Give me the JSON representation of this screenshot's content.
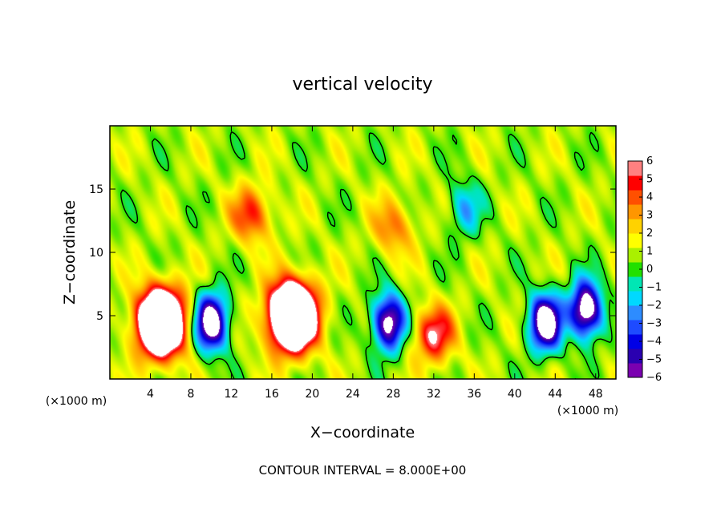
{
  "chart_data": {
    "type": "heatmap",
    "title": "vertical velocity",
    "xlabel": "X−coordinate",
    "ylabel": "Z−coordinate",
    "x_unit": "(×1000 m)",
    "y_unit": "(×1000 m)",
    "footer": "CONTOUR INTERVAL = 8.000E+00",
    "xlim": [
      0,
      50
    ],
    "ylim": [
      0,
      20
    ],
    "x_ticks": [
      4,
      8,
      12,
      16,
      20,
      24,
      28,
      32,
      36,
      40,
      44,
      48
    ],
    "y_ticks": [
      5,
      10,
      15
    ],
    "x_tick_labels": [
      "4",
      "8",
      "12",
      "16",
      "20",
      "24",
      "28",
      "32",
      "36",
      "40",
      "44",
      "48"
    ],
    "y_tick_labels": [
      "5",
      "10",
      "15"
    ],
    "colorbar": {
      "range": [
        -6,
        6
      ],
      "ticks": [
        6,
        5,
        4,
        3,
        2,
        1,
        0,
        -1,
        -2,
        -3,
        -4,
        -5,
        -6
      ],
      "tick_labels": [
        "6",
        "5",
        "4",
        "3",
        "2",
        "1",
        "0",
        "−1",
        "−2",
        "−3",
        "−4",
        "−5",
        "−6"
      ],
      "colors": [
        "#7a00b0",
        "#2a00b0",
        "#0000e6",
        "#1e4bff",
        "#2d8cff",
        "#00d9ff",
        "#00e6b4",
        "#22e000",
        "#aaf000",
        "#ffff00",
        "#ffd200",
        "#ff9600",
        "#ff5000",
        "#ff0000",
        "#ff8080"
      ]
    },
    "features": [
      {
        "kind": "updraft",
        "x": 5.0,
        "z": 4.5,
        "peak": 14
      },
      {
        "kind": "downdraft",
        "x": 10.0,
        "z": 4.5,
        "peak": -9
      },
      {
        "kind": "updraft",
        "x": 18.0,
        "z": 5.0,
        "peak": 15
      },
      {
        "kind": "updraft",
        "x": 14.0,
        "z": 13.0,
        "peak": 4
      },
      {
        "kind": "downdraft",
        "x": 27.5,
        "z": 4.5,
        "peak": -8
      },
      {
        "kind": "updraft",
        "x": 32.0,
        "z": 3.5,
        "peak": 5
      },
      {
        "kind": "downdraft",
        "x": 43.0,
        "z": 4.5,
        "peak": -9
      },
      {
        "kind": "downdraft",
        "x": 47.0,
        "z": 5.5,
        "peak": -9
      },
      {
        "kind": "updraft",
        "x": 28.0,
        "z": 12.0,
        "peak": 3
      },
      {
        "kind": "downdraft",
        "x": 35.0,
        "z": 13.5,
        "peak": -3
      }
    ]
  }
}
